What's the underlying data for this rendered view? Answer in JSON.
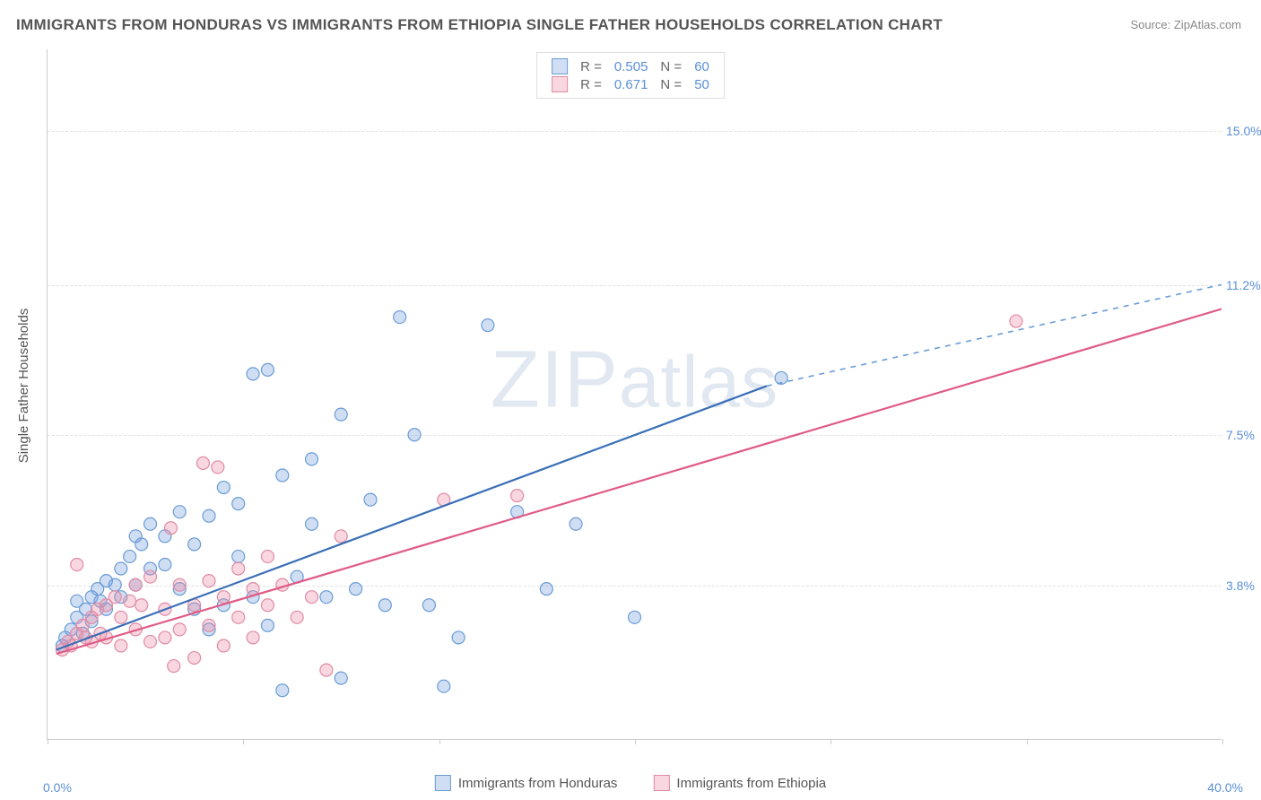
{
  "title": "IMMIGRANTS FROM HONDURAS VS IMMIGRANTS FROM ETHIOPIA SINGLE FATHER HOUSEHOLDS CORRELATION CHART",
  "source": "Source: ZipAtlas.com",
  "watermark": "ZIPatlas",
  "chart": {
    "type": "scatter",
    "ylabel": "Single Father Households",
    "xlim": [
      0.0,
      40.0
    ],
    "ylim": [
      0.0,
      17.0
    ],
    "x_min_label": "0.0%",
    "x_max_label": "40.0%",
    "y_ticks": [
      3.8,
      7.5,
      11.2,
      15.0
    ],
    "y_tick_labels": [
      "3.8%",
      "7.5%",
      "11.2%",
      "15.0%"
    ],
    "x_tick_positions": [
      0,
      6.67,
      13.33,
      20,
      26.67,
      33.33,
      40
    ],
    "background_color": "#ffffff",
    "grid_color": "#e0e0e0",
    "marker_radius": 7,
    "marker_stroke_width": 1.2,
    "series": [
      {
        "name": "Immigrants from Honduras",
        "color_fill": "rgba(120,160,220,0.35)",
        "color_stroke": "#6a9cd6",
        "trend_color": "#3a6fb7",
        "trend_dash_color": "#6a9cd6",
        "R": "0.505",
        "N": "60",
        "trend_x1": 0.3,
        "trend_y1": 2.2,
        "trend_x2": 24.5,
        "trend_y2": 8.7,
        "trend_ext_x2": 40.0,
        "trend_ext_y2": 11.2,
        "points": [
          [
            0.5,
            2.3
          ],
          [
            0.6,
            2.5
          ],
          [
            0.8,
            2.7
          ],
          [
            1.0,
            3.0
          ],
          [
            1.0,
            3.4
          ],
          [
            1.2,
            2.6
          ],
          [
            1.3,
            3.2
          ],
          [
            1.5,
            3.5
          ],
          [
            1.5,
            2.9
          ],
          [
            1.7,
            3.7
          ],
          [
            1.8,
            3.4
          ],
          [
            2.0,
            3.9
          ],
          [
            2.0,
            3.2
          ],
          [
            2.3,
            3.8
          ],
          [
            2.5,
            4.2
          ],
          [
            2.5,
            3.5
          ],
          [
            2.8,
            4.5
          ],
          [
            3.0,
            5.0
          ],
          [
            3.0,
            3.8
          ],
          [
            3.2,
            4.8
          ],
          [
            3.5,
            4.2
          ],
          [
            3.5,
            5.3
          ],
          [
            4.0,
            5.0
          ],
          [
            4.0,
            4.3
          ],
          [
            4.5,
            3.7
          ],
          [
            4.5,
            5.6
          ],
          [
            5.0,
            4.8
          ],
          [
            5.0,
            3.2
          ],
          [
            5.5,
            5.5
          ],
          [
            5.5,
            2.7
          ],
          [
            6.0,
            6.2
          ],
          [
            6.0,
            3.3
          ],
          [
            6.5,
            4.5
          ],
          [
            6.5,
            5.8
          ],
          [
            7.0,
            9.0
          ],
          [
            7.0,
            3.5
          ],
          [
            7.5,
            9.1
          ],
          [
            7.5,
            2.8
          ],
          [
            8.0,
            6.5
          ],
          [
            8.0,
            1.2
          ],
          [
            8.5,
            4.0
          ],
          [
            9.0,
            6.9
          ],
          [
            9.0,
            5.3
          ],
          [
            9.5,
            3.5
          ],
          [
            10.0,
            8.0
          ],
          [
            10.0,
            1.5
          ],
          [
            10.5,
            3.7
          ],
          [
            11.0,
            5.9
          ],
          [
            11.5,
            3.3
          ],
          [
            12.0,
            10.4
          ],
          [
            12.5,
            7.5
          ],
          [
            13.0,
            3.3
          ],
          [
            13.5,
            1.3
          ],
          [
            14.0,
            2.5
          ],
          [
            15.0,
            10.2
          ],
          [
            16.0,
            5.6
          ],
          [
            17.0,
            3.7
          ],
          [
            18.0,
            5.3
          ],
          [
            20.0,
            3.0
          ],
          [
            25.0,
            8.9
          ]
        ]
      },
      {
        "name": "Immigrants from Ethiopia",
        "color_fill": "rgba(235,140,165,0.35)",
        "color_stroke": "#e08ba5",
        "trend_color": "#e05a85",
        "R": "0.671",
        "N": "50",
        "trend_x1": 0.3,
        "trend_y1": 2.1,
        "trend_x2": 40.0,
        "trend_y2": 10.6,
        "points": [
          [
            0.5,
            2.2
          ],
          [
            0.7,
            2.4
          ],
          [
            0.8,
            2.3
          ],
          [
            1.0,
            2.6
          ],
          [
            1.0,
            4.3
          ],
          [
            1.2,
            2.8
          ],
          [
            1.3,
            2.5
          ],
          [
            1.5,
            3.0
          ],
          [
            1.5,
            2.4
          ],
          [
            1.7,
            3.2
          ],
          [
            1.8,
            2.6
          ],
          [
            2.0,
            3.3
          ],
          [
            2.0,
            2.5
          ],
          [
            2.3,
            3.5
          ],
          [
            2.5,
            3.0
          ],
          [
            2.5,
            2.3
          ],
          [
            2.8,
            3.4
          ],
          [
            3.0,
            3.8
          ],
          [
            3.0,
            2.7
          ],
          [
            3.2,
            3.3
          ],
          [
            3.5,
            2.4
          ],
          [
            3.5,
            4.0
          ],
          [
            4.0,
            3.2
          ],
          [
            4.0,
            2.5
          ],
          [
            4.2,
            5.2
          ],
          [
            4.3,
            1.8
          ],
          [
            4.5,
            3.8
          ],
          [
            4.5,
            2.7
          ],
          [
            5.0,
            3.3
          ],
          [
            5.0,
            2.0
          ],
          [
            5.3,
            6.8
          ],
          [
            5.5,
            3.9
          ],
          [
            5.5,
            2.8
          ],
          [
            5.8,
            6.7
          ],
          [
            6.0,
            3.5
          ],
          [
            6.0,
            2.3
          ],
          [
            6.5,
            4.2
          ],
          [
            6.5,
            3.0
          ],
          [
            7.0,
            3.7
          ],
          [
            7.0,
            2.5
          ],
          [
            7.5,
            3.3
          ],
          [
            7.5,
            4.5
          ],
          [
            8.0,
            3.8
          ],
          [
            8.5,
            3.0
          ],
          [
            9.0,
            3.5
          ],
          [
            9.5,
            1.7
          ],
          [
            10.0,
            5.0
          ],
          [
            13.5,
            5.9
          ],
          [
            16.0,
            6.0
          ],
          [
            33.0,
            10.3
          ]
        ]
      }
    ]
  },
  "bottom_legend": [
    {
      "label": "Immigrants from Honduras",
      "fill": "rgba(120,160,220,0.35)",
      "stroke": "#6a9cd6"
    },
    {
      "label": "Immigrants from Ethiopia",
      "fill": "rgba(235,140,165,0.35)",
      "stroke": "#e08ba5"
    }
  ]
}
